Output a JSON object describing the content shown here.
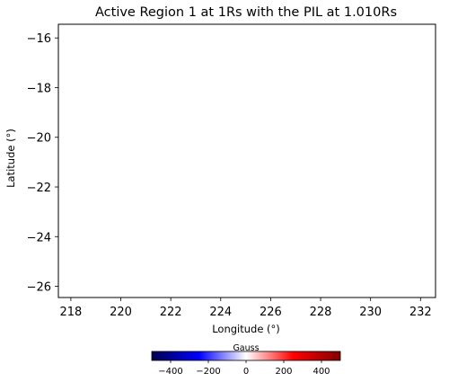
{
  "chart_data": {
    "type": "heatmap",
    "title": "Active Region 1 at 1Rs with the PIL at 1.010Rs",
    "xlabel": "Longitude (°)",
    "ylabel": "Latitude (°)",
    "xlim": [
      217.5,
      232.6
    ],
    "ylim": [
      -26.45,
      -15.45
    ],
    "xticks": [
      218,
      220,
      222,
      224,
      226,
      228,
      230,
      232
    ],
    "yticks": [
      -16,
      -18,
      -20,
      -22,
      -24,
      -26
    ],
    "grid": false,
    "data_points": [],
    "colorbar": {
      "label": "Gauss",
      "range": [
        -500,
        500
      ],
      "ticks": [
        -400,
        -200,
        0,
        200,
        400
      ],
      "colormap": "seismic",
      "stops": [
        "#00004d",
        "#0000ff",
        "#ffffff",
        "#ff0000",
        "#800000"
      ]
    }
  }
}
